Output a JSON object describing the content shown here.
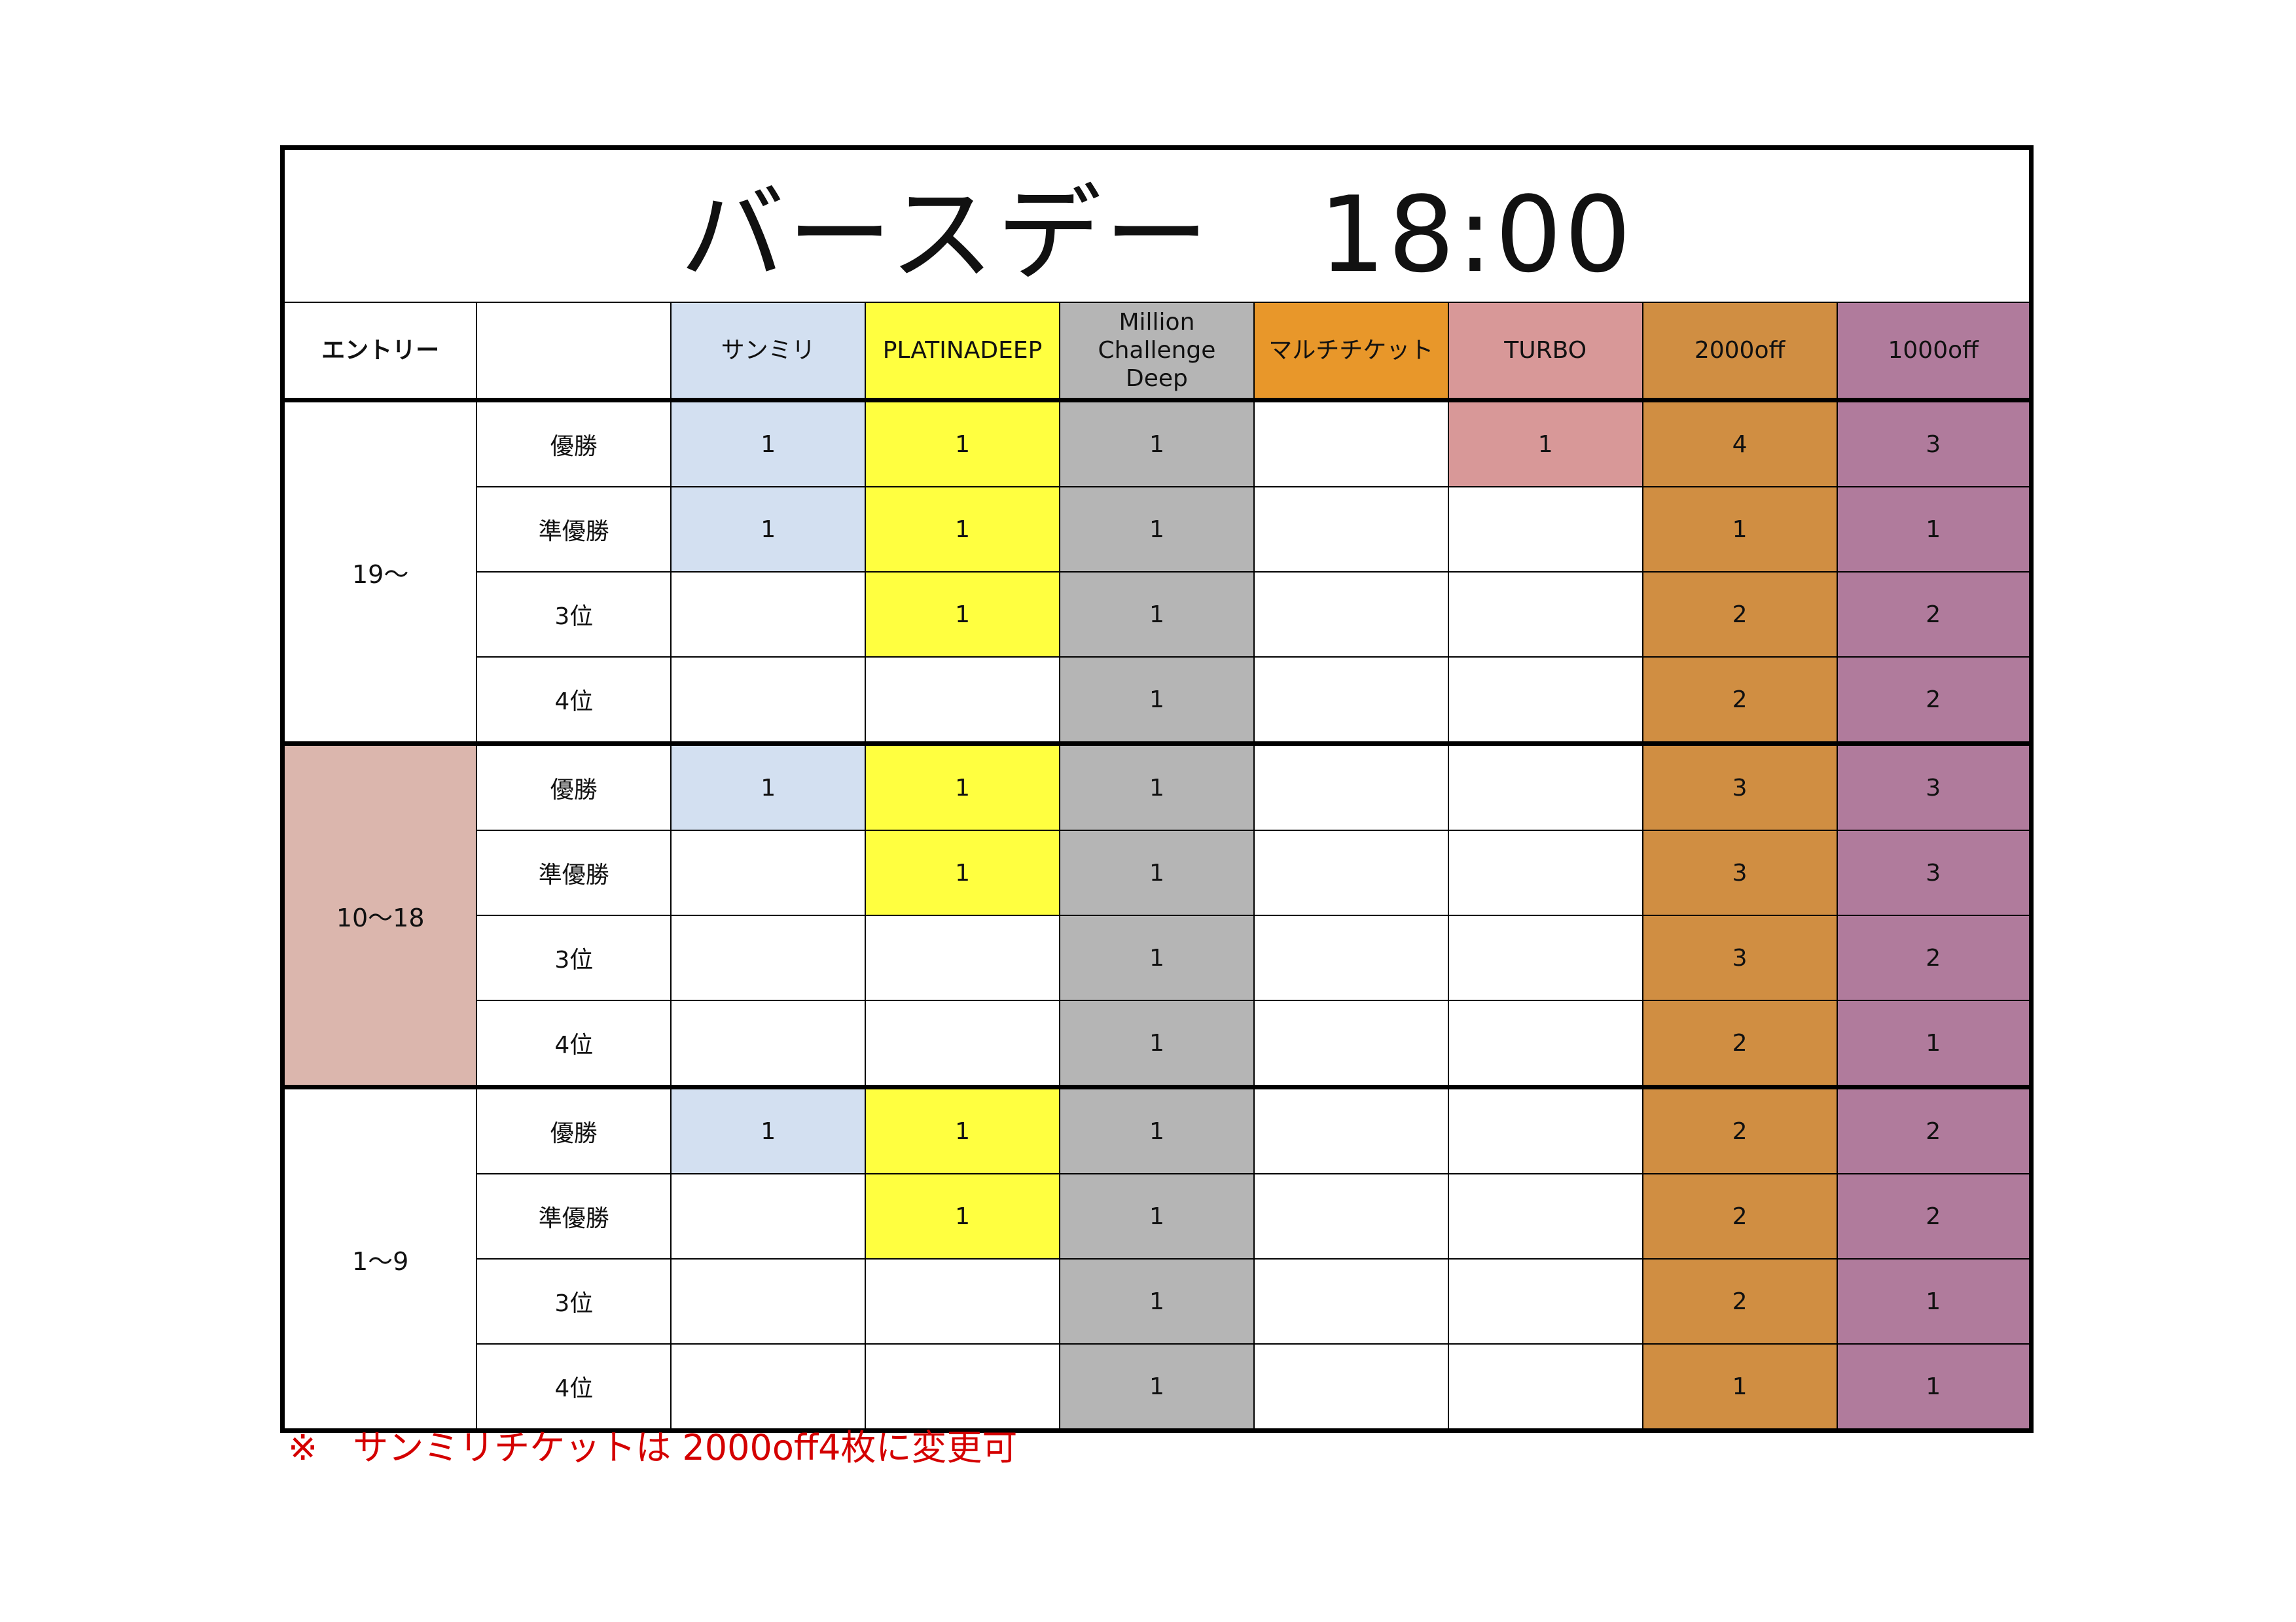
{
  "title": "バースデー　18:00",
  "header": {
    "entry_label": "エントリー",
    "rank_label": "",
    "columns": [
      {
        "label": "サンミリ",
        "color": "#d3e0f1"
      },
      {
        "label": "PLATINADEEP",
        "color": "#ffff40"
      },
      {
        "label": "Million\nChallenge\nDeep",
        "color": "#b5b5b5"
      },
      {
        "label": "マルチチケット",
        "color": "#e8972a"
      },
      {
        "label": "TURBO",
        "color": "#d89898"
      },
      {
        "label": "2000off",
        "color": "#d08e42"
      },
      {
        "label": "1000off",
        "color": "#b07b9c"
      }
    ]
  },
  "always_filled_columns": [
    2,
    5,
    6
  ],
  "groups": [
    {
      "label": "19〜",
      "color": "#ffffff",
      "rows": [
        {
          "rank": "優勝",
          "values": [
            "1",
            "1",
            "1",
            "",
            "1",
            "4",
            "3"
          ]
        },
        {
          "rank": "準優勝",
          "values": [
            "1",
            "1",
            "1",
            "",
            "",
            "1",
            "1"
          ]
        },
        {
          "rank": "3位",
          "values": [
            "",
            "1",
            "1",
            "",
            "",
            "2",
            "2"
          ]
        },
        {
          "rank": "4位",
          "values": [
            "",
            "",
            "1",
            "",
            "",
            "2",
            "2"
          ]
        }
      ]
    },
    {
      "label": "10〜18",
      "color": "#dbb6ad",
      "rows": [
        {
          "rank": "優勝",
          "values": [
            "1",
            "1",
            "1",
            "",
            "",
            "3",
            "3"
          ]
        },
        {
          "rank": "準優勝",
          "values": [
            "",
            "1",
            "1",
            "",
            "",
            "3",
            "3"
          ]
        },
        {
          "rank": "3位",
          "values": [
            "",
            "",
            "1",
            "",
            "",
            "3",
            "2"
          ]
        },
        {
          "rank": "4位",
          "values": [
            "",
            "",
            "1",
            "",
            "",
            "2",
            "1"
          ]
        }
      ]
    },
    {
      "label": "1〜9",
      "color": "#ffffff",
      "rows": [
        {
          "rank": "優勝",
          "values": [
            "1",
            "1",
            "1",
            "",
            "",
            "2",
            "2"
          ]
        },
        {
          "rank": "準優勝",
          "values": [
            "",
            "1",
            "1",
            "",
            "",
            "2",
            "2"
          ]
        },
        {
          "rank": "3位",
          "values": [
            "",
            "",
            "1",
            "",
            "",
            "2",
            "1"
          ]
        },
        {
          "rank": "4位",
          "values": [
            "",
            "",
            "1",
            "",
            "",
            "1",
            "1"
          ]
        }
      ]
    }
  ],
  "note": "※　サンミリチケットは 2000off4枚に変更可",
  "note_color": "#d40000"
}
